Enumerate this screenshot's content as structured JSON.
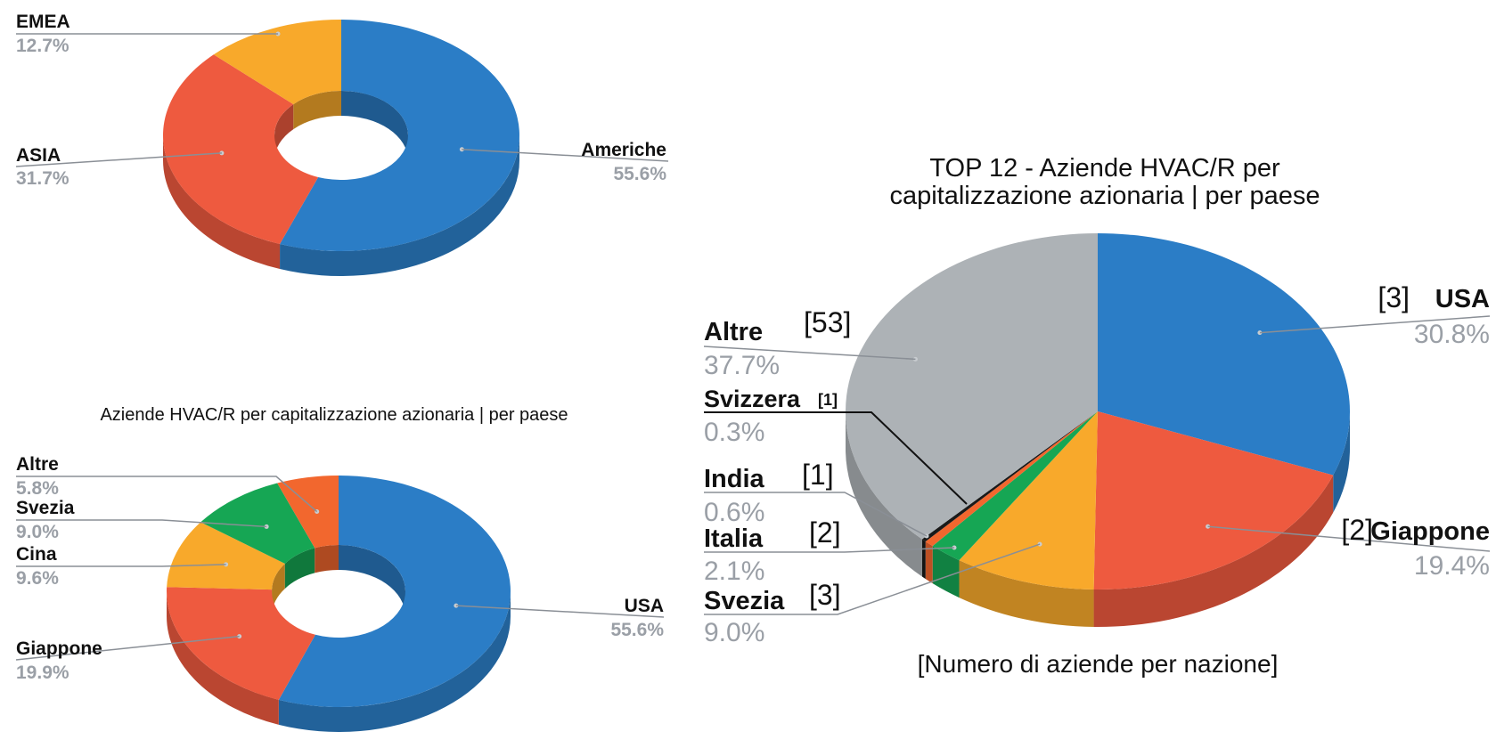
{
  "chart_data": [
    {
      "type": "pie",
      "title": "",
      "slices": [
        {
          "label": "Americhe",
          "value": 55.6,
          "pct": "55.6%",
          "color": "#2b7dc6"
        },
        {
          "label": "ASIA",
          "value": 31.7,
          "pct": "31.7%",
          "color": "#ee5a3f"
        },
        {
          "label": "EMEA",
          "value": 12.7,
          "pct": "12.7%",
          "color": "#f8a92b"
        }
      ]
    },
    {
      "type": "pie",
      "title": "Aziende HVAC/R per capitalizzazione azionaria | per paese",
      "slices": [
        {
          "label": "USA",
          "value": 55.6,
          "pct": "55.6%",
          "color": "#2b7dc6"
        },
        {
          "label": "Giappone",
          "value": 19.9,
          "pct": "19.9%",
          "color": "#ee5a3f"
        },
        {
          "label": "Cina",
          "value": 9.6,
          "pct": "9.6%",
          "color": "#f8a92b"
        },
        {
          "label": "Svezia",
          "value": 9.0,
          "pct": "9.0%",
          "color": "#16a654"
        },
        {
          "label": "Altre",
          "value": 5.8,
          "pct": "5.8%",
          "color": "#f2672e"
        }
      ]
    },
    {
      "type": "pie",
      "title": "TOP 12 - Aziende HVAC/R per capitalizzazione azionaria | per paese",
      "title_line1": "TOP 12 - Aziende HVAC/R per",
      "title_line2": "capitalizzazione azionaria | per paese",
      "footnote": "[Numero di aziende per nazione]",
      "slices": [
        {
          "label": "USA",
          "value": 30.8,
          "pct": "30.8%",
          "count": "[3]",
          "color": "#2b7dc6"
        },
        {
          "label": "Giappone",
          "value": 19.4,
          "pct": "19.4%",
          "count": "[2]",
          "color": "#ee5a3f"
        },
        {
          "label": "Svezia",
          "value": 9.0,
          "pct": "9.0%",
          "count": "[3]",
          "color": "#f8a92b"
        },
        {
          "label": "Italia",
          "value": 2.1,
          "pct": "2.1%",
          "count": "[2]",
          "color": "#16a654"
        },
        {
          "label": "India",
          "value": 0.6,
          "pct": "0.6%",
          "count": "[1]",
          "color": "#f2672e"
        },
        {
          "label": "Svizzera",
          "value": 0.3,
          "pct": "0.3%",
          "count": "[1]",
          "color": "#1a1a1a"
        },
        {
          "label": "Altre",
          "value": 37.7,
          "pct": "37.7%",
          "count": "[53]",
          "color": "#adb2b6"
        }
      ]
    }
  ]
}
